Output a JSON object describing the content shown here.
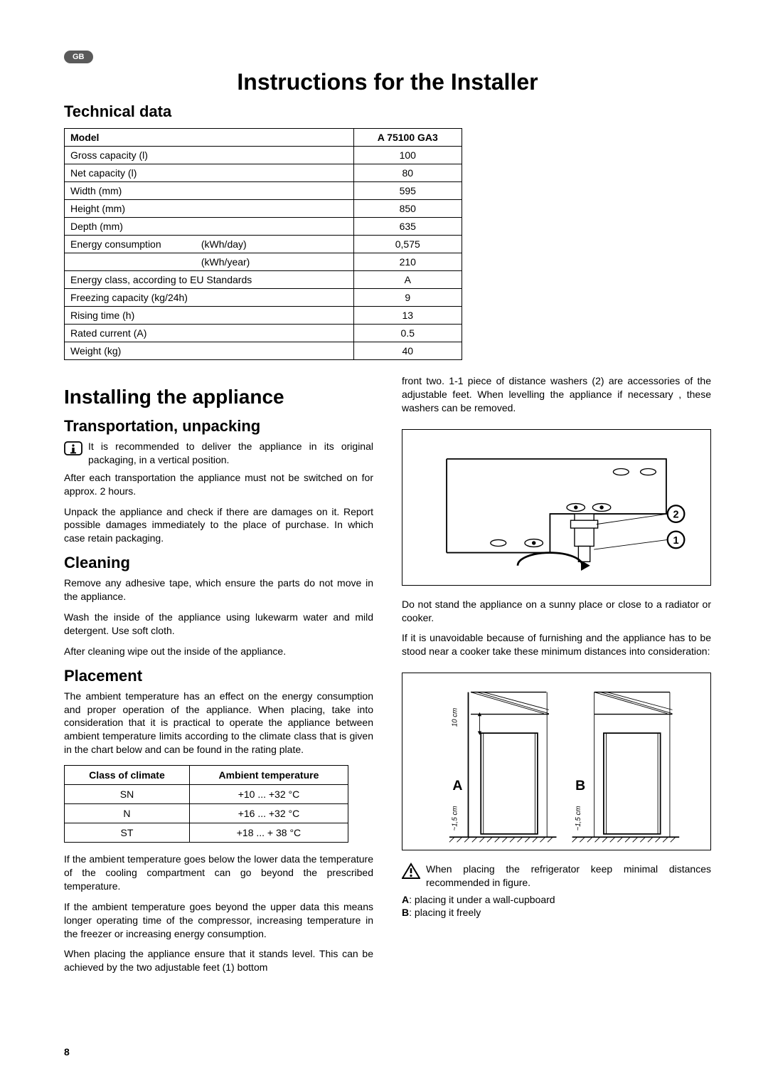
{
  "badge": "GB",
  "title": "Instructions for the Installer",
  "section_tech": "Technical data",
  "tech_table": {
    "model_label": "Model",
    "model_value": "A 75100 GA3",
    "rows": [
      {
        "label": "Gross capacity (l)",
        "value": "100"
      },
      {
        "label": "Net capacity (l)",
        "value": "80"
      },
      {
        "label": "Width (mm)",
        "value": "595"
      },
      {
        "label": "Height (mm)",
        "value": "850"
      },
      {
        "label": "Depth (mm)",
        "value": "635"
      }
    ],
    "energy_label": "Energy consumption",
    "energy_unit1": "(kWh/day)",
    "energy_val1": "0,575",
    "energy_unit2": "(kWh/year)",
    "energy_val2": "210",
    "rows2": [
      {
        "label": "Energy class, according to EU Standards",
        "value": "A"
      },
      {
        "label": "Freezing capacity (kg/24h)",
        "value": "9"
      },
      {
        "label": "Rising time (h)",
        "value": "13"
      },
      {
        "label": "Rated current (A)",
        "value": "0.5"
      },
      {
        "label": "Weight (kg)",
        "value": "40"
      }
    ]
  },
  "install_heading": "Installing the appliance",
  "left": {
    "h_transport": "Transportation, unpacking",
    "p_transport1": "It is recommended to deliver the appliance in its original packaging, in a vertical position.",
    "p_transport2": "After each transportation the appliance must not be switched on for approx. 2 hours.",
    "p_transport3": "Unpack the appliance and check if there are damages on it. Report possible damages immediately to the place of purchase. In which case retain packaging.",
    "h_clean": "Cleaning",
    "p_clean1": "Remove any adhesive tape, which ensure the parts do not move in the appliance.",
    "p_clean2": "Wash the inside of the appliance using lukewarm water and mild detergent. Use soft cloth.",
    "p_clean3": "After cleaning wipe out the inside of the appliance.",
    "h_place": "Placement",
    "p_place1": "The ambient temperature has an effect on the energy consumption and proper operation of the appliance. When placing, take into consideration that it is practical to operate the appliance between ambient temperature limits according to the climate class that is given in the chart below and can be found in the rating plate.",
    "climate": {
      "h1": "Class of climate",
      "h2": "Ambient temperature",
      "rows": [
        {
          "c": "SN",
          "t": "+10 ... +32 °C"
        },
        {
          "c": "N",
          "t": "+16 ... +32 °C"
        },
        {
          "c": "ST",
          "t": "+18 ... + 38 °C"
        }
      ]
    },
    "p_place2": "If the ambient temperature goes below the lower data the temperature of the cooling compartment can go beyond the prescribed temperature.",
    "p_place3": "If the ambient temperature goes beyond the upper data this means longer operating time of the compressor, increasing temperature in the freezer or increasing energy consumption.",
    "p_place4": "When placing the appliance ensure that it stands level. This can be achieved by the two adjustable feet (1) bottom"
  },
  "right": {
    "p_cont": "front two. 1-1 piece of distance washers (2) are accessories of the adjustable feet. When levelling the appliance if necessary , these washers can be removed.",
    "p_sun": "Do not stand the appliance on a sunny place or close to a radiator or cooker.",
    "p_cooker": "If it is unavoidable because of furnishing and the appliance has to be stood near a cooker take these minimum distances into consideration:",
    "p_warn": "When placing the refrigerator keep minimal distances recommended in figure.",
    "keyA_b": "A",
    "keyA": ": placing it under a wall-cupboard",
    "keyB_b": "B",
    "keyB": ": placing it freely"
  },
  "page": "8",
  "colors": {
    "badge_bg": "#5a5a5a",
    "border": "#000000"
  },
  "fig1": {
    "label1": "1",
    "label2": "2"
  },
  "fig2": {
    "A": "A",
    "B": "B",
    "dim_top": "10 cm",
    "dim_side": "~1,5 cm"
  }
}
